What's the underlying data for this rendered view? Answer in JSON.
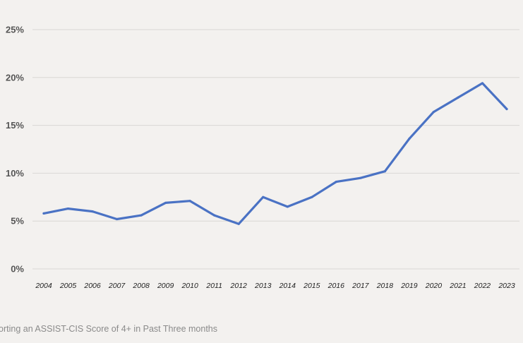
{
  "chart_data": {
    "type": "line",
    "title": "",
    "xlabel": "",
    "ylabel": "",
    "categories": [
      "2004",
      "2005",
      "2006",
      "2007",
      "2008",
      "2009",
      "2010",
      "2011",
      "2012",
      "2013",
      "2014",
      "2015",
      "2016",
      "2017",
      "2018",
      "2019",
      "2020",
      "2021",
      "2022",
      "2023"
    ],
    "series": [
      {
        "values": [
          5.8,
          6.3,
          6.0,
          5.2,
          5.6,
          6.9,
          7.1,
          5.6,
          4.7,
          7.5,
          6.5,
          7.5,
          9.1,
          9.5,
          10.2,
          13.6,
          16.4,
          17.9,
          19.4,
          16.7
        ],
        "color": "#4a72c4"
      }
    ],
    "ylim": [
      0,
      25
    ],
    "yticks": [
      "0%",
      "5%",
      "10%",
      "15%",
      "20%",
      "25%"
    ],
    "grid": true,
    "legend": "none"
  },
  "caption": "orting an ASSIST-CIS Score of 4+ in Past Three months"
}
